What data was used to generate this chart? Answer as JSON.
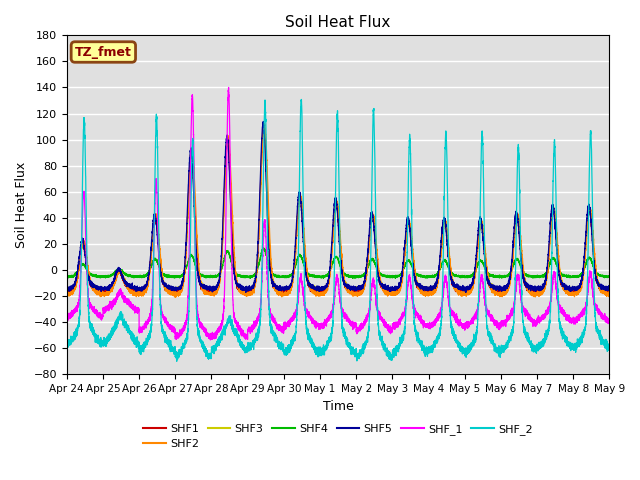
{
  "title": "Soil Heat Flux",
  "ylabel": "Soil Heat Flux",
  "xlabel": "Time",
  "ylim": [
    -80,
    180
  ],
  "yticks": [
    -80,
    -60,
    -40,
    -20,
    0,
    20,
    40,
    60,
    80,
    100,
    120,
    140,
    160,
    180
  ],
  "annotation_text": "TZ_fmet",
  "annotation_box_facecolor": "#FFFF99",
  "annotation_box_edgecolor": "#8B4513",
  "annotation_text_color": "#8B0000",
  "series_colors": {
    "SHF1": "#CC0000",
    "SHF2": "#FF8800",
    "SHF3": "#CCCC00",
    "SHF4": "#00BB00",
    "SHF5": "#000099",
    "SHF_1": "#FF00FF",
    "SHF_2": "#00CCCC"
  },
  "bg_color": "#E0E0E0",
  "grid_color": "#FFFFFF",
  "tick_labels": [
    "Apr 24",
    "Apr 25",
    "Apr 26",
    "Apr 27",
    "Apr 28",
    "Apr 29",
    "Apr 30",
    "May 1",
    "May 2",
    "May 3",
    "May 4",
    "May 5",
    "May 6",
    "May 7",
    "May 8",
    "May 9"
  ]
}
